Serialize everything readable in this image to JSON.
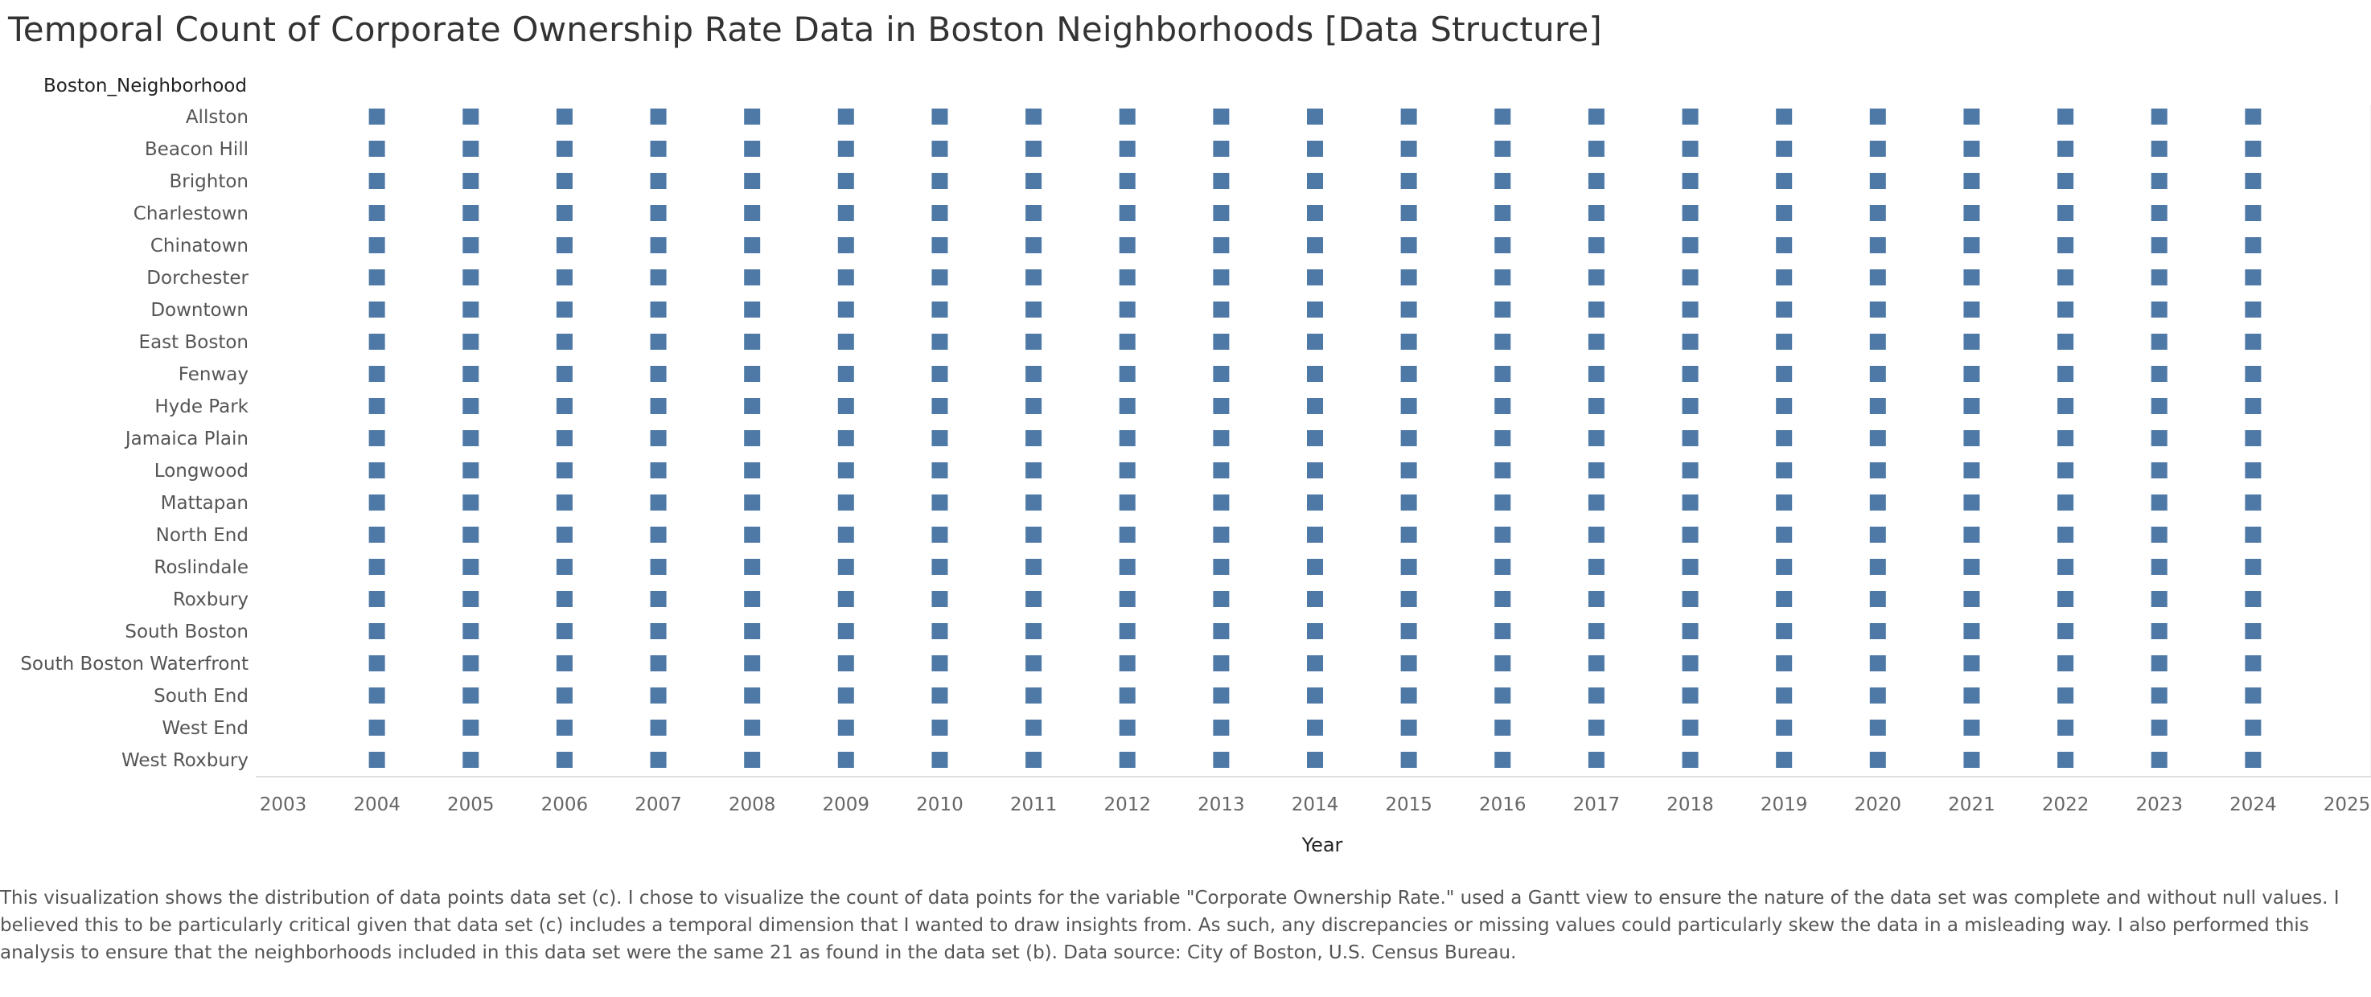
{
  "chart_data": {
    "type": "scatter",
    "mark": "gantt-square",
    "title": "Temporal Count of Corporate Ownership Rate Data in Boston Neighborhoods [Data Structure]",
    "row_header": "Boston_Neighborhood",
    "xlabel": "Year",
    "ylabel": "",
    "xlim": [
      2003,
      2025
    ],
    "x_ticks": [
      2003,
      2004,
      2005,
      2006,
      2007,
      2008,
      2009,
      2010,
      2011,
      2012,
      2013,
      2014,
      2015,
      2016,
      2017,
      2018,
      2019,
      2020,
      2021,
      2022,
      2023,
      2024,
      2025
    ],
    "years_with_data": [
      2004,
      2005,
      2006,
      2007,
      2008,
      2009,
      2010,
      2011,
      2012,
      2013,
      2014,
      2015,
      2016,
      2017,
      2018,
      2019,
      2020,
      2021,
      2022,
      2023,
      2024
    ],
    "neighborhoods": [
      "Allston",
      "Beacon Hill",
      "Brighton",
      "Charlestown",
      "Chinatown",
      "Dorchester",
      "Downtown",
      "East Boston",
      "Fenway",
      "Hyde Park",
      "Jamaica Plain",
      "Longwood",
      "Mattapan",
      "North End",
      "Roslindale",
      "Roxbury",
      "South Boston",
      "South Boston Waterfront",
      "South End",
      "West End",
      "West Roxbury"
    ],
    "mark_color": "#4e79a7",
    "grid": false,
    "legend": "none"
  },
  "caption": "This visualization shows the distribution of data points data set (c). I chose to visualize the count of data points for the variable \"Corporate Ownership Rate.\" used a Gantt view to ensure the nature of the data set was complete and without null values. I believed this to be particularly critical given that data set (c) includes a temporal dimension that I wanted to draw insights from. As such, any discrepancies or missing values could particularly skew the data in a misleading way. I also performed this analysis to ensure that the neighborhoods included in this data set were the same 21  as found in the data set (b). Data source: City of Boston, U.S. Census Bureau."
}
